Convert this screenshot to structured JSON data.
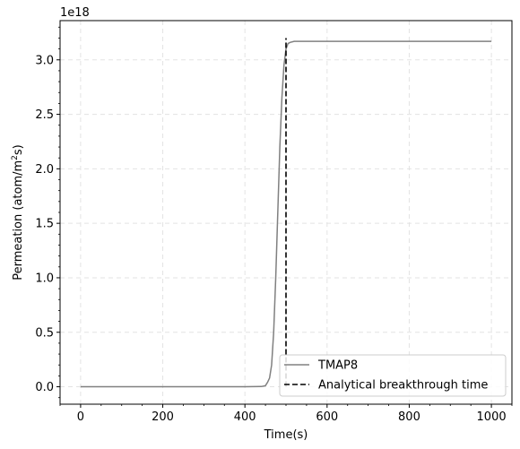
{
  "chart_data": {
    "type": "line",
    "title": "",
    "xlabel": "Time(s)",
    "ylabel_main": "Permeation (atom/m",
    "ylabel_sup": "2",
    "ylabel_tail": "s)",
    "offset_text": "1e18",
    "xlim": [
      -50,
      1050
    ],
    "ylim": [
      -0.16,
      3.36
    ],
    "xticks": [
      0,
      200,
      400,
      600,
      800,
      1000
    ],
    "xtick_labels": [
      "0",
      "200",
      "400",
      "600",
      "800",
      "1000"
    ],
    "yticks": [
      0.0,
      0.5,
      1.0,
      1.5,
      2.0,
      2.5,
      3.0
    ],
    "ytick_labels": [
      "0.0",
      "0.5",
      "1.0",
      "1.5",
      "2.0",
      "2.5",
      "3.0"
    ],
    "grid": true,
    "legend_position": "lower-right",
    "series": [
      {
        "name": "TMAP8",
        "color": "#808080",
        "style": "solid",
        "x": [
          0,
          200,
          400,
          440,
          450,
          455,
          460,
          465,
          470,
          475,
          480,
          485,
          490,
          495,
          500,
          505,
          510,
          520,
          540,
          600,
          800,
          1000
        ],
        "y": [
          0,
          0,
          0,
          0.002,
          0.01,
          0.04,
          0.08,
          0.2,
          0.5,
          1.0,
          1.6,
          2.2,
          2.65,
          2.95,
          3.1,
          3.15,
          3.16,
          3.17,
          3.17,
          3.17,
          3.17,
          3.17
        ]
      },
      {
        "name": "Analytical breakthrough time",
        "color": "#000000",
        "style": "dashed",
        "x": [
          500,
          500
        ],
        "y": [
          0,
          3.2
        ]
      }
    ]
  }
}
